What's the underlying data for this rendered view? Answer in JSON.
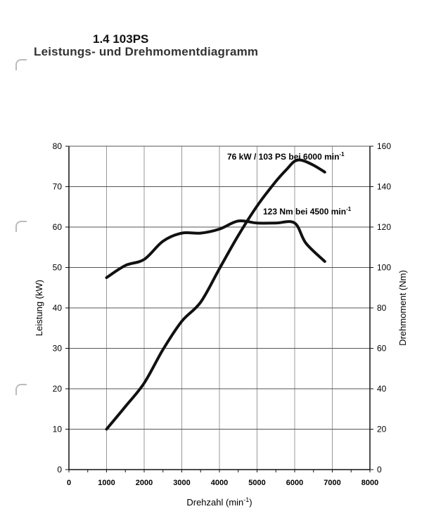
{
  "header": {
    "model": "1.4 103PS",
    "title": "Leistungs- und Drehmomentdiagramm"
  },
  "chart_data": {
    "type": "line",
    "title": "Leistungs- und Drehmomentdiagramm",
    "xlabel": "Drehzahl (min",
    "xlabel_sup": "-1",
    "xlabel_end": ")",
    "ylabel": "Leistung (kW)",
    "y2label": "Drehmoment (Nm)",
    "xlim": [
      0,
      8000
    ],
    "ylim": [
      0,
      80
    ],
    "y2lim": [
      0,
      160
    ],
    "xticks": [
      0,
      1000,
      2000,
      3000,
      4000,
      5000,
      6000,
      7000,
      8000
    ],
    "yticks": [
      0,
      10,
      20,
      30,
      40,
      50,
      60,
      70,
      80
    ],
    "y2ticks": [
      0,
      20,
      40,
      60,
      80,
      100,
      120,
      140,
      160
    ],
    "grid": true,
    "series": [
      {
        "name": "Leistung",
        "axis": "left",
        "unit": "kW",
        "x": [
          1000,
          1500,
          2000,
          2500,
          3000,
          3500,
          4000,
          4500,
          5000,
          5500,
          5800,
          6000,
          6200,
          6500,
          6800
        ],
        "values": [
          10,
          15.6,
          21.4,
          29.7,
          36.7,
          41.4,
          49.7,
          57.9,
          65.2,
          71.3,
          74.4,
          76.3,
          76.5,
          75.3,
          73.6
        ]
      },
      {
        "name": "Drehmoment",
        "axis": "right",
        "unit": "Nm",
        "x": [
          1000,
          1500,
          2000,
          2500,
          3000,
          3500,
          4000,
          4500,
          5000,
          5500,
          6000,
          6300,
          6800
        ],
        "values": [
          95,
          101,
          104,
          113,
          117,
          117,
          119,
          123,
          122,
          122,
          122,
          112,
          103
        ]
      }
    ],
    "annotations": [
      {
        "text": "76 kW / 103 PS bei 6000 min",
        "sup": "-1"
      },
      {
        "text": "123 Nm bei 4500 min",
        "sup": "-1"
      }
    ]
  }
}
